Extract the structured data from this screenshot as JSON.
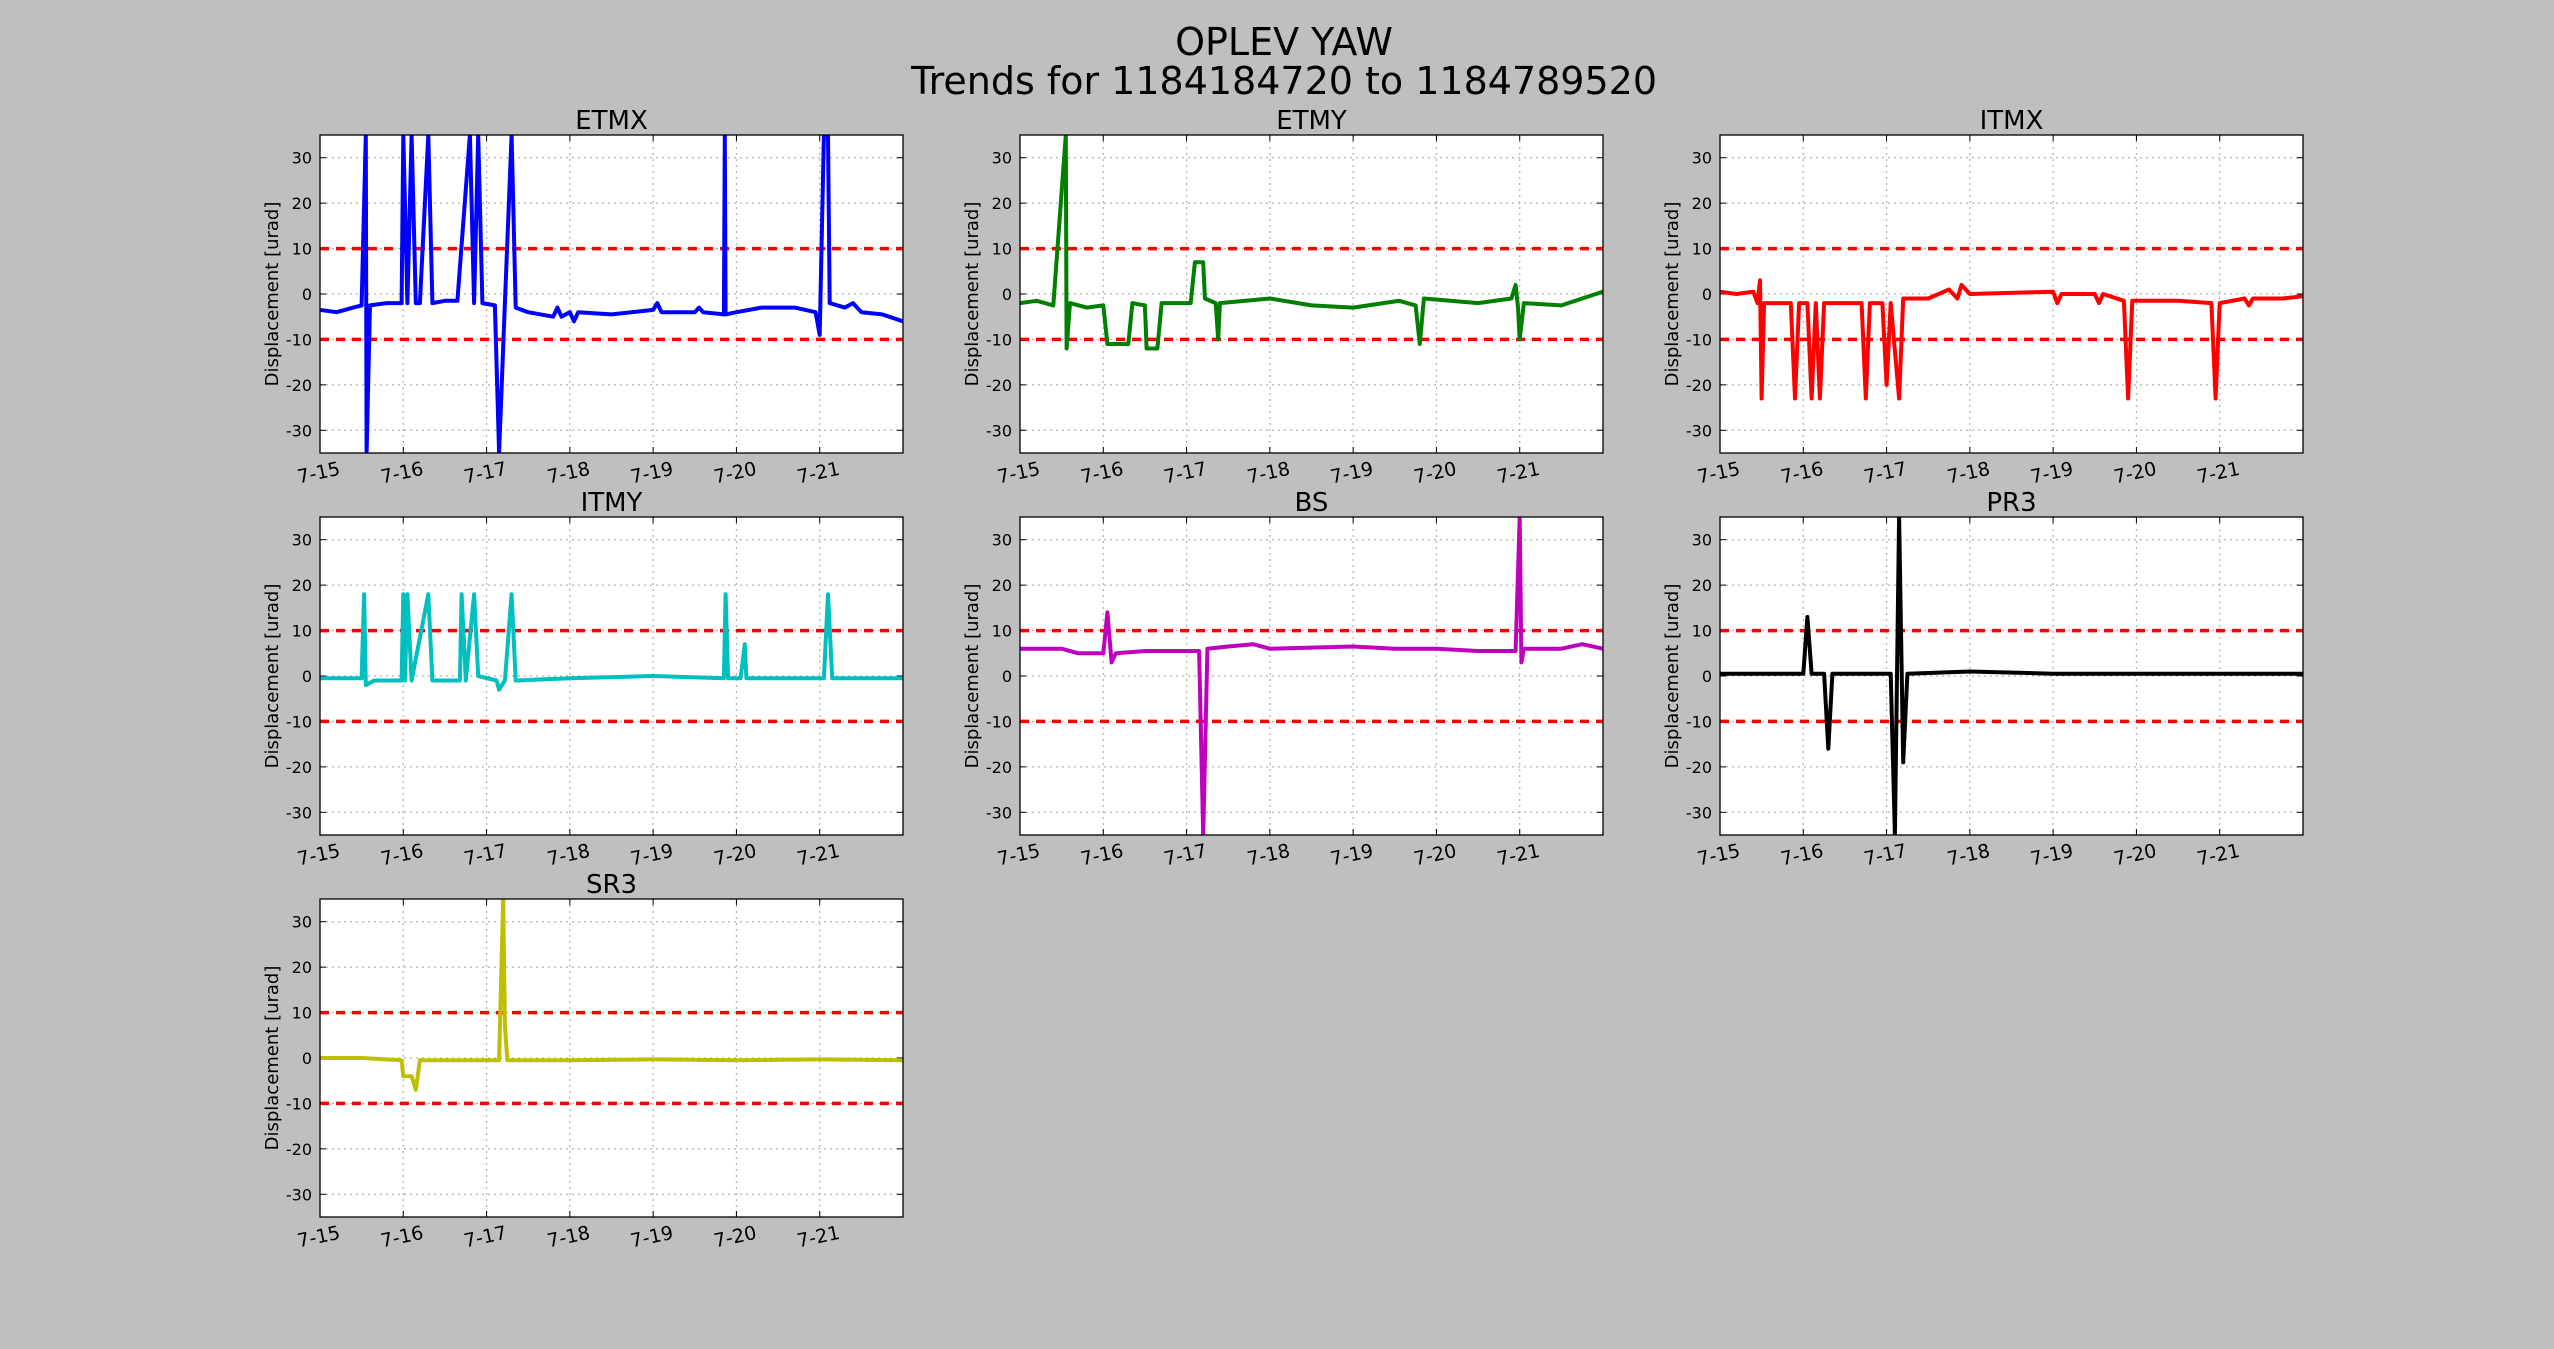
{
  "figure": {
    "title": "OPLEV YAW",
    "subtitle": "Trends for 1184184720 to 1184789520"
  },
  "style": {
    "background": "#bfbfbf",
    "plot_background": "#ffffff",
    "grid_color": "#b0b0b0",
    "threshold_color": "#ff0000"
  },
  "chart_data": [
    {
      "type": "line",
      "title": "ETMX",
      "ylabel": "Displacement [urad]",
      "color": "#0000ff",
      "xlim": [
        7.15,
        7.22
      ],
      "ylim": [
        -35,
        35
      ],
      "x_ticks": [
        "7-15",
        "7-16",
        "7-17",
        "7-18",
        "7-19",
        "7-20",
        "7-21"
      ],
      "y_ticks": [
        30,
        20,
        10,
        0,
        -10,
        -20,
        -30
      ],
      "thresholds": [
        10,
        -10
      ],
      "grid": true,
      "points": [
        [
          7.15,
          -3.5
        ],
        [
          7.152,
          -4
        ],
        [
          7.154,
          -3
        ],
        [
          7.155,
          -2.5
        ],
        [
          7.1555,
          35
        ],
        [
          7.1556,
          -35
        ],
        [
          7.156,
          -2.5
        ],
        [
          7.158,
          -2
        ],
        [
          7.1598,
          -2
        ],
        [
          7.16,
          35
        ],
        [
          7.1605,
          -2
        ],
        [
          7.161,
          35
        ],
        [
          7.1615,
          -2
        ],
        [
          7.162,
          -2
        ],
        [
          7.163,
          35
        ],
        [
          7.1635,
          -2
        ],
        [
          7.165,
          -1.5
        ],
        [
          7.1665,
          -1.5
        ],
        [
          7.168,
          35
        ],
        [
          7.1685,
          -2
        ],
        [
          7.169,
          35
        ],
        [
          7.1695,
          -2
        ],
        [
          7.171,
          -2.5
        ],
        [
          7.1715,
          -35
        ],
        [
          7.1722,
          -2
        ],
        [
          7.173,
          35
        ],
        [
          7.1735,
          -3
        ],
        [
          7.175,
          -4
        ],
        [
          7.178,
          -5
        ],
        [
          7.1785,
          -3
        ],
        [
          7.179,
          -5
        ],
        [
          7.18,
          -4
        ],
        [
          7.1805,
          -6
        ],
        [
          7.181,
          -4
        ],
        [
          7.185,
          -4.5
        ],
        [
          7.19,
          -3.5
        ],
        [
          7.1905,
          -2
        ],
        [
          7.191,
          -4
        ],
        [
          7.195,
          -4
        ],
        [
          7.1955,
          -3
        ],
        [
          7.196,
          -4
        ],
        [
          7.1985,
          -4.5
        ],
        [
          7.1986,
          35
        ],
        [
          7.1987,
          -4.5
        ],
        [
          7.2,
          -4
        ],
        [
          7.203,
          -3
        ],
        [
          7.207,
          -3
        ],
        [
          7.2095,
          -4
        ],
        [
          7.21,
          -9
        ],
        [
          7.2105,
          35
        ],
        [
          7.211,
          35
        ],
        [
          7.2112,
          -2
        ],
        [
          7.213,
          -3
        ],
        [
          7.214,
          -2
        ],
        [
          7.215,
          -4
        ],
        [
          7.2175,
          -4.5
        ],
        [
          7.22,
          -6
        ]
      ]
    },
    {
      "type": "line",
      "title": "ETMY",
      "ylabel": "Displacement [urad]",
      "color": "#007f00",
      "xlim": [
        7.15,
        7.22
      ],
      "ylim": [
        -35,
        35
      ],
      "x_ticks": [
        "7-15",
        "7-16",
        "7-17",
        "7-18",
        "7-19",
        "7-20",
        "7-21"
      ],
      "y_ticks": [
        30,
        20,
        10,
        0,
        -10,
        -20,
        -30
      ],
      "thresholds": [
        10,
        -10
      ],
      "grid": true,
      "points": [
        [
          7.15,
          -2
        ],
        [
          7.152,
          -1.5
        ],
        [
          7.154,
          -2.5
        ],
        [
          7.1555,
          35
        ],
        [
          7.1556,
          -12
        ],
        [
          7.156,
          -2
        ],
        [
          7.158,
          -3
        ],
        [
          7.16,
          -2.5
        ],
        [
          7.1605,
          -11
        ],
        [
          7.163,
          -11
        ],
        [
          7.1635,
          -2
        ],
        [
          7.165,
          -2.5
        ],
        [
          7.1652,
          -12
        ],
        [
          7.1665,
          -12
        ],
        [
          7.167,
          -2
        ],
        [
          7.1705,
          -2
        ],
        [
          7.171,
          7
        ],
        [
          7.172,
          7
        ],
        [
          7.1722,
          -1
        ],
        [
          7.1735,
          -2
        ],
        [
          7.1738,
          -10
        ],
        [
          7.174,
          -2
        ],
        [
          7.18,
          -1
        ],
        [
          7.185,
          -2.5
        ],
        [
          7.19,
          -3
        ],
        [
          7.1955,
          -1.5
        ],
        [
          7.1975,
          -2.5
        ],
        [
          7.198,
          -11
        ],
        [
          7.1985,
          -1
        ],
        [
          7.205,
          -2
        ],
        [
          7.209,
          -1
        ],
        [
          7.2095,
          2
        ],
        [
          7.2098,
          -3
        ],
        [
          7.21,
          -10
        ],
        [
          7.2105,
          -2
        ],
        [
          7.215,
          -2.5
        ],
        [
          7.2175,
          -1
        ],
        [
          7.22,
          0.5
        ]
      ]
    },
    {
      "type": "line",
      "title": "ITMX",
      "ylabel": "Displacement [urad]",
      "color": "#ff0000",
      "xlim": [
        7.15,
        7.22
      ],
      "ylim": [
        -35,
        35
      ],
      "x_ticks": [
        "7-15",
        "7-16",
        "7-17",
        "7-18",
        "7-19",
        "7-20",
        "7-21"
      ],
      "y_ticks": [
        30,
        20,
        10,
        0,
        -10,
        -20,
        -30
      ],
      "thresholds": [
        10,
        -10
      ],
      "grid": true,
      "points": [
        [
          7.15,
          0.5
        ],
        [
          7.152,
          0
        ],
        [
          7.154,
          0.5
        ],
        [
          7.1545,
          -2
        ],
        [
          7.1548,
          3
        ],
        [
          7.155,
          -23
        ],
        [
          7.1553,
          -2
        ],
        [
          7.1585,
          -2
        ],
        [
          7.159,
          -23
        ],
        [
          7.1595,
          -2
        ],
        [
          7.1605,
          -2
        ],
        [
          7.161,
          -23
        ],
        [
          7.1615,
          -2
        ],
        [
          7.162,
          -23
        ],
        [
          7.1625,
          -2
        ],
        [
          7.167,
          -2
        ],
        [
          7.1675,
          -23
        ],
        [
          7.168,
          -2
        ],
        [
          7.1695,
          -2
        ],
        [
          7.17,
          -20
        ],
        [
          7.1705,
          -2
        ],
        [
          7.1715,
          -23
        ],
        [
          7.172,
          -1
        ],
        [
          7.175,
          -1
        ],
        [
          7.1775,
          1
        ],
        [
          7.1785,
          -1
        ],
        [
          7.179,
          2
        ],
        [
          7.18,
          0
        ],
        [
          7.19,
          0.5
        ],
        [
          7.1905,
          -2
        ],
        [
          7.191,
          0
        ],
        [
          7.195,
          0
        ],
        [
          7.1955,
          -2
        ],
        [
          7.196,
          0
        ],
        [
          7.1985,
          -1.5
        ],
        [
          7.199,
          -23
        ],
        [
          7.1995,
          -1.5
        ],
        [
          7.205,
          -1.5
        ],
        [
          7.209,
          -2
        ],
        [
          7.2095,
          -23
        ],
        [
          7.21,
          -2
        ],
        [
          7.213,
          -1
        ],
        [
          7.2135,
          -2.5
        ],
        [
          7.214,
          -1
        ],
        [
          7.2175,
          -1
        ],
        [
          7.22,
          -0.5
        ]
      ]
    },
    {
      "type": "line",
      "title": "ITMY",
      "ylabel": "Displacement [urad]",
      "color": "#00bfbf",
      "xlim": [
        7.15,
        7.22
      ],
      "ylim": [
        -35,
        35
      ],
      "x_ticks": [
        "7-15",
        "7-16",
        "7-17",
        "7-18",
        "7-19",
        "7-20",
        "7-21"
      ],
      "y_ticks": [
        30,
        20,
        10,
        0,
        -10,
        -20,
        -30
      ],
      "thresholds": [
        10,
        -10
      ],
      "grid": true,
      "points": [
        [
          7.15,
          -0.5
        ],
        [
          7.155,
          -0.5
        ],
        [
          7.1553,
          18
        ],
        [
          7.1555,
          -2
        ],
        [
          7.1565,
          -1
        ],
        [
          7.1598,
          -1
        ],
        [
          7.16,
          18
        ],
        [
          7.1602,
          -1
        ],
        [
          7.1605,
          18
        ],
        [
          7.161,
          -1
        ],
        [
          7.163,
          18
        ],
        [
          7.1635,
          -1
        ],
        [
          7.1668,
          -1
        ],
        [
          7.167,
          18
        ],
        [
          7.1675,
          -1
        ],
        [
          7.1685,
          18
        ],
        [
          7.169,
          0
        ],
        [
          7.1712,
          -1
        ],
        [
          7.1715,
          -3
        ],
        [
          7.1722,
          -1
        ],
        [
          7.173,
          18
        ],
        [
          7.1735,
          -1
        ],
        [
          7.18,
          -0.5
        ],
        [
          7.19,
          0
        ],
        [
          7.1985,
          -0.5
        ],
        [
          7.1987,
          18
        ],
        [
          7.199,
          -0.5
        ],
        [
          7.2005,
          -0.5
        ],
        [
          7.201,
          7
        ],
        [
          7.2012,
          -0.5
        ],
        [
          7.2105,
          -0.5
        ],
        [
          7.211,
          18
        ],
        [
          7.2115,
          -0.5
        ],
        [
          7.215,
          -0.5
        ],
        [
          7.22,
          -0.5
        ]
      ]
    },
    {
      "type": "line",
      "title": "BS",
      "ylabel": "Displacement [urad]",
      "color": "#bf00bf",
      "xlim": [
        7.15,
        7.22
      ],
      "ylim": [
        -35,
        35
      ],
      "x_ticks": [
        "7-15",
        "7-16",
        "7-17",
        "7-18",
        "7-19",
        "7-20",
        "7-21"
      ],
      "y_ticks": [
        30,
        20,
        10,
        0,
        -10,
        -20,
        -30
      ],
      "thresholds": [
        10,
        -10
      ],
      "grid": true,
      "points": [
        [
          7.15,
          6
        ],
        [
          7.155,
          6
        ],
        [
          7.157,
          5
        ],
        [
          7.16,
          5
        ],
        [
          7.1605,
          14
        ],
        [
          7.161,
          3
        ],
        [
          7.1615,
          5
        ],
        [
          7.165,
          5.5
        ],
        [
          7.1715,
          5.5
        ],
        [
          7.172,
          -35
        ],
        [
          7.1725,
          6
        ],
        [
          7.175,
          6.5
        ],
        [
          7.178,
          7
        ],
        [
          7.18,
          6
        ],
        [
          7.19,
          6.5
        ],
        [
          7.195,
          6
        ],
        [
          7.2,
          6
        ],
        [
          7.205,
          5.5
        ],
        [
          7.2095,
          5.5
        ],
        [
          7.21,
          35
        ],
        [
          7.2102,
          3
        ],
        [
          7.2105,
          6
        ],
        [
          7.215,
          6
        ],
        [
          7.2175,
          7
        ],
        [
          7.22,
          6
        ]
      ]
    },
    {
      "type": "line",
      "title": "PR3",
      "ylabel": "Displacement [urad]",
      "color": "#000000",
      "xlim": [
        7.15,
        7.22
      ],
      "ylim": [
        -35,
        35
      ],
      "x_ticks": [
        "7-15",
        "7-16",
        "7-17",
        "7-18",
        "7-19",
        "7-20",
        "7-21"
      ],
      "y_ticks": [
        30,
        20,
        10,
        0,
        -10,
        -20,
        -30
      ],
      "thresholds": [
        10,
        -10
      ],
      "grid": true,
      "points": [
        [
          7.15,
          0.5
        ],
        [
          7.155,
          0.5
        ],
        [
          7.16,
          0.5
        ],
        [
          7.1605,
          13
        ],
        [
          7.161,
          0.5
        ],
        [
          7.1625,
          0.5
        ],
        [
          7.163,
          -16
        ],
        [
          7.1635,
          0.5
        ],
        [
          7.1705,
          0.5
        ],
        [
          7.171,
          -35
        ],
        [
          7.1715,
          35
        ],
        [
          7.172,
          -19
        ],
        [
          7.1725,
          0.5
        ],
        [
          7.18,
          1
        ],
        [
          7.19,
          0.5
        ],
        [
          7.2,
          0.5
        ],
        [
          7.21,
          0.5
        ],
        [
          7.22,
          0.5
        ]
      ]
    },
    {
      "type": "line",
      "title": "SR3",
      "ylabel": "Displacement [urad]",
      "color": "#bfbf00",
      "xlim": [
        7.15,
        7.22
      ],
      "ylim": [
        -35,
        35
      ],
      "x_ticks": [
        "7-15",
        "7-16",
        "7-17",
        "7-18",
        "7-19",
        "7-20",
        "7-21"
      ],
      "y_ticks": [
        30,
        20,
        10,
        0,
        -10,
        -20,
        -30
      ],
      "thresholds": [
        10,
        -10
      ],
      "grid": true,
      "points": [
        [
          7.15,
          0
        ],
        [
          7.155,
          0
        ],
        [
          7.1598,
          -0.5
        ],
        [
          7.16,
          -4
        ],
        [
          7.161,
          -4
        ],
        [
          7.1615,
          -7
        ],
        [
          7.162,
          -0.5
        ],
        [
          7.165,
          -0.5
        ],
        [
          7.1715,
          -0.5
        ],
        [
          7.172,
          35
        ],
        [
          7.1722,
          7
        ],
        [
          7.1725,
          -0.5
        ],
        [
          7.18,
          -0.5
        ],
        [
          7.19,
          -0.3
        ],
        [
          7.2,
          -0.5
        ],
        [
          7.21,
          -0.3
        ],
        [
          7.22,
          -0.5
        ]
      ]
    }
  ]
}
